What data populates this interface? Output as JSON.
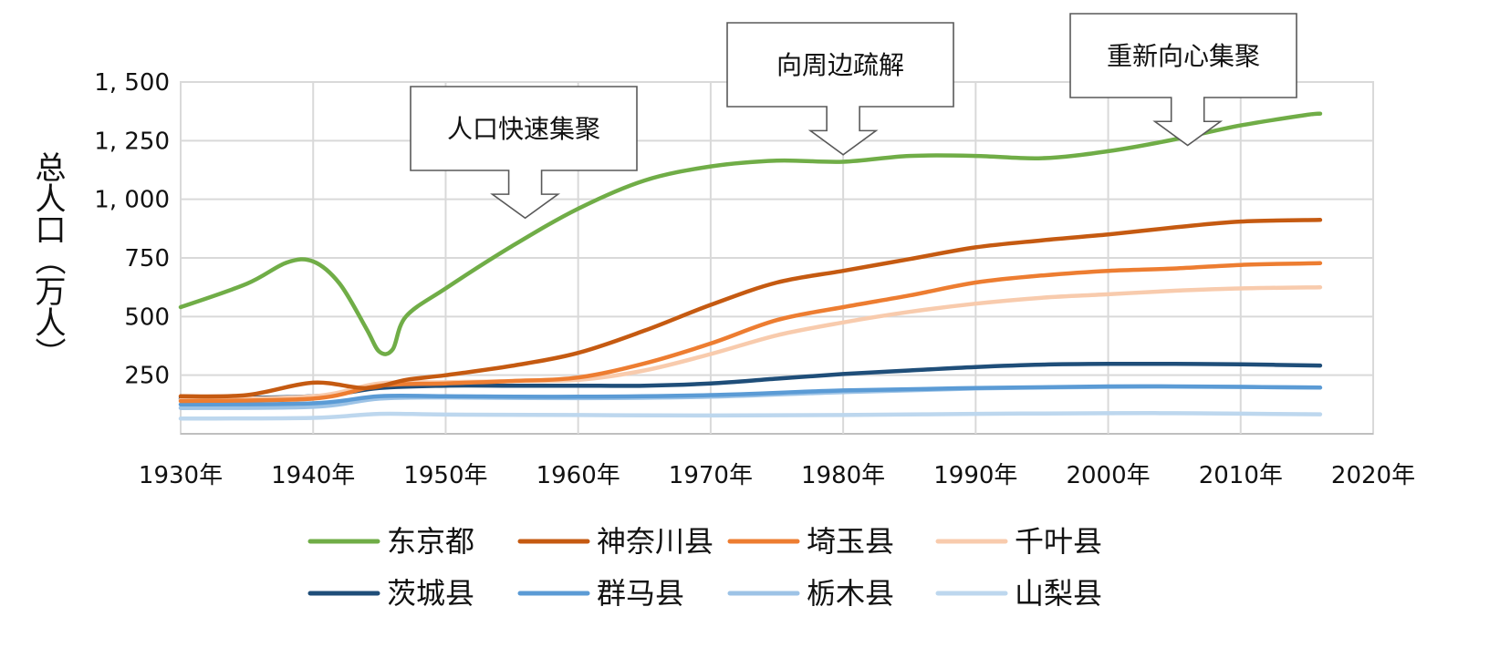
{
  "chart_data": {
    "type": "line",
    "ylabel": "总人口（万人）",
    "xlim": [
      1930,
      2020
    ],
    "ylim": [
      0,
      1500
    ],
    "yticks": [
      250,
      500,
      750,
      1000,
      1250,
      1500
    ],
    "ytick_labels": [
      "250",
      "500",
      "750",
      "1, 000",
      "1, 250",
      "1, 500"
    ],
    "xticks": [
      1930,
      1940,
      1950,
      1960,
      1970,
      1980,
      1990,
      2000,
      2010,
      2020
    ],
    "xtick_labels": [
      "1930年",
      "1940年",
      "1950年",
      "1960年",
      "1970年",
      "1980年",
      "1990年",
      "2000年",
      "2010年",
      "2020年"
    ],
    "grid": true,
    "legend_position": "bottom",
    "annotations": [
      {
        "text": "人口快速集聚",
        "year": 1956,
        "value": 920
      },
      {
        "text": "向周边疏解",
        "year": 1980,
        "value": 1190
      },
      {
        "text": "重新向心集聚",
        "year": 2006,
        "value": 1230
      }
    ],
    "series": [
      {
        "name": "东京都",
        "color": "#70AD47",
        "points": [
          [
            1930,
            540
          ],
          [
            1935,
            640
          ],
          [
            1938,
            730
          ],
          [
            1940,
            735
          ],
          [
            1942,
            640
          ],
          [
            1944,
            450
          ],
          [
            1945,
            350
          ],
          [
            1946,
            360
          ],
          [
            1947,
            500
          ],
          [
            1950,
            620
          ],
          [
            1955,
            800
          ],
          [
            1960,
            960
          ],
          [
            1965,
            1080
          ],
          [
            1970,
            1140
          ],
          [
            1975,
            1165
          ],
          [
            1980,
            1160
          ],
          [
            1985,
            1185
          ],
          [
            1990,
            1185
          ],
          [
            1995,
            1175
          ],
          [
            2000,
            1205
          ],
          [
            2005,
            1255
          ],
          [
            2010,
            1315
          ],
          [
            2015,
            1360
          ],
          [
            2016,
            1365
          ]
        ]
      },
      {
        "name": "神奈川县",
        "color": "#C55A11",
        "points": [
          [
            1930,
            160
          ],
          [
            1935,
            165
          ],
          [
            1940,
            218
          ],
          [
            1944,
            195
          ],
          [
            1947,
            230
          ],
          [
            1950,
            250
          ],
          [
            1955,
            290
          ],
          [
            1960,
            345
          ],
          [
            1965,
            440
          ],
          [
            1970,
            550
          ],
          [
            1975,
            645
          ],
          [
            1980,
            695
          ],
          [
            1985,
            745
          ],
          [
            1990,
            795
          ],
          [
            1995,
            825
          ],
          [
            2000,
            850
          ],
          [
            2005,
            880
          ],
          [
            2010,
            905
          ],
          [
            2016,
            912
          ]
        ]
      },
      {
        "name": "埼玉县",
        "color": "#ED7D31",
        "points": [
          [
            1930,
            140
          ],
          [
            1940,
            150
          ],
          [
            1945,
            205
          ],
          [
            1950,
            215
          ],
          [
            1955,
            225
          ],
          [
            1960,
            240
          ],
          [
            1965,
            300
          ],
          [
            1970,
            385
          ],
          [
            1975,
            485
          ],
          [
            1980,
            540
          ],
          [
            1985,
            590
          ],
          [
            1990,
            645
          ],
          [
            1995,
            675
          ],
          [
            2000,
            695
          ],
          [
            2005,
            705
          ],
          [
            2010,
            720
          ],
          [
            2016,
            728
          ]
        ]
      },
      {
        "name": "千叶县",
        "color": "#F8CBAD",
        "points": [
          [
            1930,
            145
          ],
          [
            1940,
            160
          ],
          [
            1945,
            215
          ],
          [
            1950,
            220
          ],
          [
            1955,
            225
          ],
          [
            1960,
            230
          ],
          [
            1965,
            270
          ],
          [
            1970,
            340
          ],
          [
            1975,
            420
          ],
          [
            1980,
            475
          ],
          [
            1985,
            520
          ],
          [
            1990,
            555
          ],
          [
            1995,
            580
          ],
          [
            2000,
            595
          ],
          [
            2005,
            610
          ],
          [
            2010,
            620
          ],
          [
            2016,
            625
          ]
        ]
      },
      {
        "name": "茨城县",
        "color": "#1F4E79",
        "points": [
          [
            1930,
            150
          ],
          [
            1940,
            160
          ],
          [
            1945,
            195
          ],
          [
            1950,
            205
          ],
          [
            1955,
            205
          ],
          [
            1960,
            205
          ],
          [
            1965,
            205
          ],
          [
            1970,
            215
          ],
          [
            1975,
            235
          ],
          [
            1980,
            255
          ],
          [
            1985,
            270
          ],
          [
            1990,
            285
          ],
          [
            1995,
            295
          ],
          [
            2000,
            298
          ],
          [
            2005,
            298
          ],
          [
            2010,
            296
          ],
          [
            2016,
            291
          ]
        ]
      },
      {
        "name": "群马县",
        "color": "#5B9BD5",
        "points": [
          [
            1930,
            125
          ],
          [
            1940,
            130
          ],
          [
            1945,
            160
          ],
          [
            1950,
            160
          ],
          [
            1960,
            158
          ],
          [
            1970,
            165
          ],
          [
            1980,
            185
          ],
          [
            1990,
            195
          ],
          [
            2000,
            202
          ],
          [
            2005,
            202
          ],
          [
            2010,
            200
          ],
          [
            2016,
            197
          ]
        ]
      },
      {
        "name": "栃木县",
        "color": "#9DC3E6",
        "points": [
          [
            1930,
            110
          ],
          [
            1940,
            115
          ],
          [
            1945,
            150
          ],
          [
            1950,
            155
          ],
          [
            1960,
            152
          ],
          [
            1970,
            158
          ],
          [
            1980,
            178
          ],
          [
            1990,
            193
          ],
          [
            2000,
            200
          ],
          [
            2005,
            201
          ],
          [
            2010,
            200
          ],
          [
            2016,
            197
          ]
        ]
      },
      {
        "name": "山梨县",
        "color": "#BDD7EE",
        "points": [
          [
            1930,
            65
          ],
          [
            1940,
            68
          ],
          [
            1945,
            85
          ],
          [
            1950,
            82
          ],
          [
            1960,
            80
          ],
          [
            1970,
            78
          ],
          [
            1980,
            80
          ],
          [
            1990,
            85
          ],
          [
            2000,
            88
          ],
          [
            2005,
            88
          ],
          [
            2010,
            86
          ],
          [
            2016,
            83
          ]
        ]
      }
    ]
  }
}
